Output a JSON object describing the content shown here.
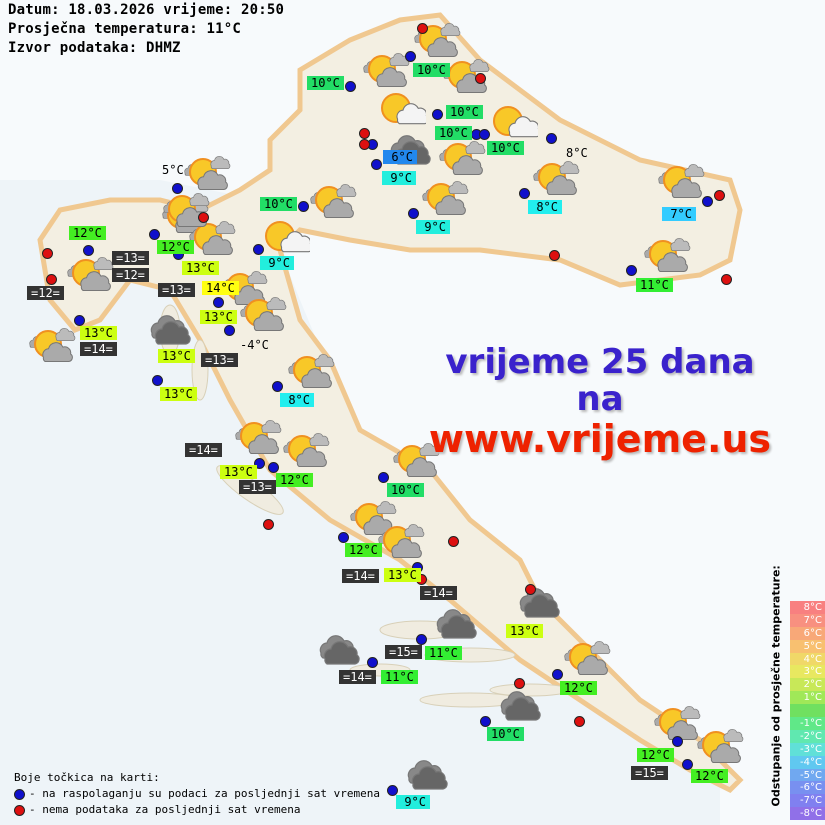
{
  "header": {
    "line1": "Datum: 18.03.2026 vrijeme: 20:50",
    "line2": "Prosječna temperatura: 11°C",
    "line3": "Izvor podataka: DHMZ"
  },
  "promo": {
    "line1": "vrijeme 25 dana",
    "line2": "na",
    "line3": "www.vrijeme.us",
    "color_blue": "#3a22cc",
    "color_red": "#ee2200"
  },
  "legend": {
    "title": "Boje točkica na karti:",
    "blue": "- na raspolaganju su podaci za posljednji sat vremena",
    "red": "- nema podataka za posljednji sat vremena",
    "blue_color": "#1010cc",
    "red_color": "#dd1010"
  },
  "scale": {
    "title": "Odstupanje od prosječne temperature:",
    "steps": [
      {
        "text": "8°C",
        "color": "#f88080"
      },
      {
        "text": "7°C",
        "color": "#f89080"
      },
      {
        "text": "6°C",
        "color": "#f8a878"
      },
      {
        "text": "5°C",
        "color": "#f8c070"
      },
      {
        "text": "4°C",
        "color": "#f0d868"
      },
      {
        "text": "3°C",
        "color": "#e8e860"
      },
      {
        "text": "2°C",
        "color": "#c8e858"
      },
      {
        "text": "1°C",
        "color": "#a0e858"
      },
      {
        "text": "",
        "color": "#70e060"
      },
      {
        "text": "-1°C",
        "color": "#60e888"
      },
      {
        "text": "-2°C",
        "color": "#60e8b0"
      },
      {
        "text": "-3°C",
        "color": "#60e0d8"
      },
      {
        "text": "-4°C",
        "color": "#60c8f0"
      },
      {
        "text": "-5°C",
        "color": "#70a8f0"
      },
      {
        "text": "-6°C",
        "color": "#7890f0"
      },
      {
        "text": "-7°C",
        "color": "#8080f0"
      },
      {
        "text": "-8°C",
        "color": "#9070e8"
      }
    ]
  },
  "temp_labels": [
    {
      "text": "10°C",
      "color": "#22dd66"
    },
    {
      "text": "10°C",
      "color": "#22dd66"
    },
    {
      "text": "10°C",
      "color": "#22dd66"
    },
    {
      "text": "10°C",
      "color": "#22dd66"
    },
    {
      "text": "10°C",
      "color": "#22dd66"
    },
    {
      "text": "6°C",
      "color": "#2288ee"
    },
    {
      "text": "9°C",
      "color": "#22eedd"
    },
    {
      "text": "9°C",
      "color": "#22eedd"
    },
    {
      "text": "8°C",
      "color": "#22eeee"
    },
    {
      "text": "7°C",
      "color": "#33ccff"
    },
    {
      "text": "11°C",
      "color": "#33ee33"
    },
    {
      "text": "10°C",
      "color": "#22dd66"
    },
    {
      "text": "9°C",
      "color": "#22eedd"
    },
    {
      "text": "12°C",
      "color": "#44ee22"
    },
    {
      "text": "12°C",
      "color": "#44ee22"
    },
    {
      "text": "13°C",
      "color": "#ccff11"
    },
    {
      "text": "14°C",
      "color": "#ffff11"
    },
    {
      "text": "13°C",
      "color": "#ccff11"
    },
    {
      "text": "13°C",
      "color": "#ccff11"
    },
    {
      "text": "13°C",
      "color": "#ccff11"
    },
    {
      "text": "13°C",
      "color": "#ccff11"
    },
    {
      "text": "8°C",
      "color": "#22eeee"
    },
    {
      "text": "13°C",
      "color": "#ccff11"
    },
    {
      "text": "12°C",
      "color": "#44ee22"
    },
    {
      "text": "10°C",
      "color": "#22dd66"
    },
    {
      "text": "12°C",
      "color": "#44ee22"
    },
    {
      "text": "13°C",
      "color": "#ccff11"
    },
    {
      "text": "13°C",
      "color": "#ccff11"
    },
    {
      "text": "11°C",
      "color": "#33ee33"
    },
    {
      "text": "11°C",
      "color": "#33ee33"
    },
    {
      "text": "12°C",
      "color": "#44ee22"
    },
    {
      "text": "10°C",
      "color": "#22dd66"
    },
    {
      "text": "12°C",
      "color": "#44ee22"
    },
    {
      "text": "12°C",
      "color": "#44ee22"
    },
    {
      "text": "9°C",
      "color": "#22eedd"
    }
  ],
  "sea_labels": [
    "=13=",
    "=12=",
    "=13=",
    "=12=",
    "=14=",
    "=13=",
    "=14=",
    "=13=",
    "=14=",
    "=14=",
    "=15=",
    "=14=",
    "=15="
  ],
  "plain_labels": [
    "5°C",
    "8°C",
    "-4°C"
  ],
  "dots": {
    "available": 35,
    "unavailable": 16
  },
  "weather_icons": {
    "partly_cloudy": 26,
    "sun_light_cloud": 3,
    "cloudy": 7
  }
}
